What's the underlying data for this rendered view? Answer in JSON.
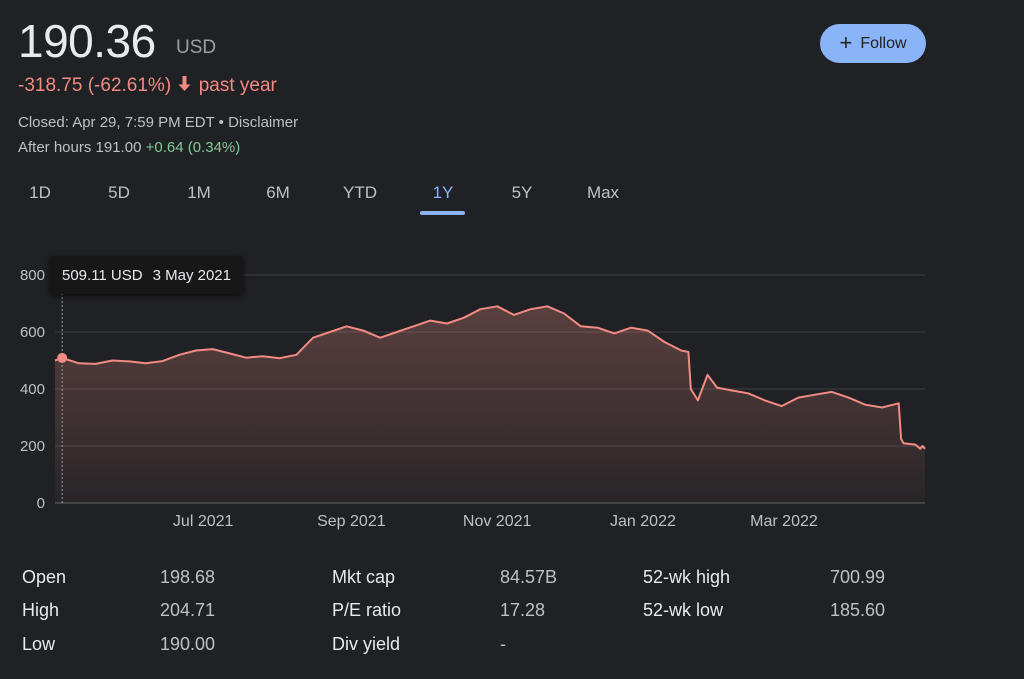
{
  "quote": {
    "price": "190.36",
    "currency": "USD",
    "change": "-318.75 (-62.61%)",
    "change_period": "past year",
    "closed": "Closed: Apr 29, 7:59 PM EDT • Disclaimer",
    "after_hours_label": "After hours 191.00",
    "after_hours_change": "+0.64 (0.34%)"
  },
  "follow": {
    "label": "Follow",
    "icon": "plus-icon"
  },
  "tabs": [
    {
      "label": "1D"
    },
    {
      "label": "5D"
    },
    {
      "label": "1M"
    },
    {
      "label": "6M"
    },
    {
      "label": "YTD"
    },
    {
      "label": "1Y",
      "active": true
    },
    {
      "label": "5Y"
    },
    {
      "label": "Max"
    }
  ],
  "tooltip": {
    "price": "509.11 USD",
    "date": "3 May 2021"
  },
  "colors": {
    "line": "#f28b82",
    "accent": "#8ab4f8",
    "positive": "#81c995",
    "negative": "#f28b82"
  },
  "chart_data": {
    "type": "area",
    "y_ticks": [
      "0",
      "200",
      "400",
      "600",
      "800"
    ],
    "ylim": [
      0,
      800
    ],
    "x_tick_labels": [
      "Jul 2021",
      "Sep 2021",
      "Nov 2021",
      "Jan 2022",
      "Mar 2022"
    ],
    "x_tick_dates": [
      "2021-07-01",
      "2021-09-01",
      "2021-11-01",
      "2022-01-01",
      "2022-03-01"
    ],
    "xlim": [
      "2021-04-30",
      "2022-04-29"
    ],
    "grid": true,
    "highlight": {
      "date": "2021-05-03",
      "value": 509.11
    },
    "series": [
      {
        "x": [
          "2021-04-30",
          "2021-05-03",
          "2021-05-10",
          "2021-05-17",
          "2021-05-24",
          "2021-05-31",
          "2021-06-07",
          "2021-06-14",
          "2021-06-21",
          "2021-06-28",
          "2021-07-05",
          "2021-07-12",
          "2021-07-19",
          "2021-07-26",
          "2021-08-02",
          "2021-08-09",
          "2021-08-16",
          "2021-08-23",
          "2021-08-30",
          "2021-09-06",
          "2021-09-13",
          "2021-09-20",
          "2021-09-27",
          "2021-10-04",
          "2021-10-11",
          "2021-10-18",
          "2021-10-25",
          "2021-11-01",
          "2021-11-08",
          "2021-11-15",
          "2021-11-22",
          "2021-11-29",
          "2021-12-06",
          "2021-12-13",
          "2021-12-20",
          "2021-12-27",
          "2022-01-03",
          "2022-01-10",
          "2022-01-17",
          "2022-01-20",
          "2022-01-21",
          "2022-01-24",
          "2022-01-28",
          "2022-02-01",
          "2022-02-07",
          "2022-02-14",
          "2022-02-21",
          "2022-02-28",
          "2022-03-07",
          "2022-03-14",
          "2022-03-21",
          "2022-03-28",
          "2022-04-04",
          "2022-04-11",
          "2022-04-18",
          "2022-04-19",
          "2022-04-20",
          "2022-04-25",
          "2022-04-27",
          "2022-04-28",
          "2022-04-29"
        ],
        "values": [
          500,
          509,
          490,
          488,
          500,
          497,
          490,
          498,
          520,
          535,
          540,
          525,
          510,
          515,
          508,
          520,
          580,
          600,
          620,
          605,
          580,
          600,
          620,
          640,
          630,
          650,
          680,
          690,
          660,
          680,
          690,
          665,
          620,
          615,
          595,
          615,
          605,
          565,
          535,
          530,
          400,
          360,
          450,
          405,
          395,
          385,
          360,
          340,
          370,
          380,
          390,
          370,
          345,
          335,
          350,
          225,
          210,
          205,
          190,
          200,
          190
        ]
      }
    ]
  }
}
